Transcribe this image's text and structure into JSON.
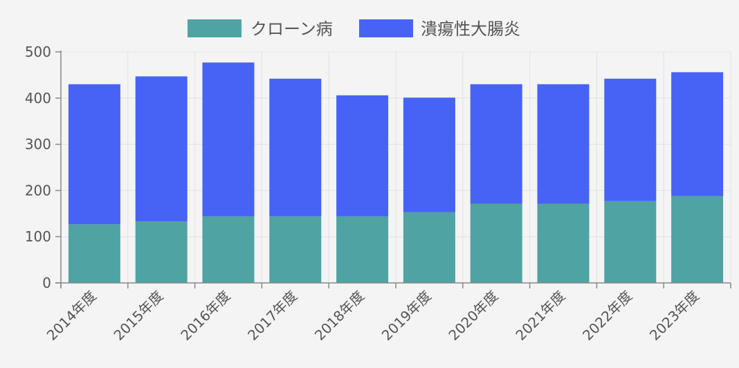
{
  "chart_data": {
    "type": "bar",
    "stacked": true,
    "categories": [
      "2014年度",
      "2015年度",
      "2016年度",
      "2017年度",
      "2018年度",
      "2019年度",
      "2020年度",
      "2021年度",
      "2022年度",
      "2023年度"
    ],
    "series": [
      {
        "name": "クローン病",
        "color": "#4fa3a3",
        "values": [
          127,
          133,
          144,
          144,
          144,
          153,
          171,
          171,
          177,
          188
        ]
      },
      {
        "name": "潰瘍性大腸炎",
        "color": "#4763f5",
        "values": [
          303,
          314,
          333,
          298,
          262,
          248,
          259,
          259,
          265,
          268
        ]
      }
    ],
    "ylim": [
      0,
      500
    ],
    "yticks": [
      0,
      100,
      200,
      300,
      400,
      500
    ],
    "grid": true,
    "legend_position": "top-center"
  }
}
